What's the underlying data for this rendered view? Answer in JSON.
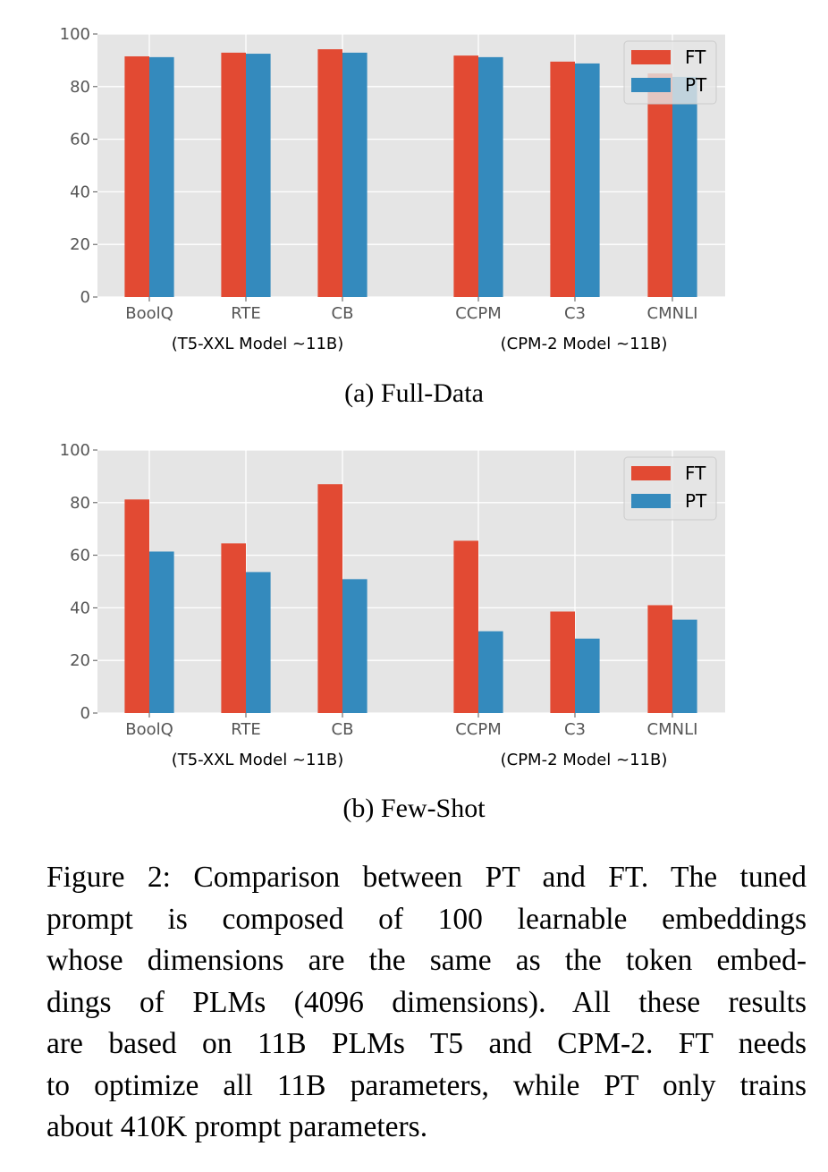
{
  "chart_data": [
    {
      "type": "bar",
      "title": "",
      "subcaption": "(a)  Full-Data",
      "categories": [
        "BoolQ",
        "RTE",
        "CB",
        "CCPM",
        "C3",
        "CMNLI"
      ],
      "groups": [
        {
          "label": "(T5-XXL Model ~11B)",
          "categories": [
            "BoolQ",
            "RTE",
            "CB"
          ]
        },
        {
          "label": "(CPM-2 Model ~11B)",
          "categories": [
            "CCPM",
            "C3",
            "CMNLI"
          ]
        }
      ],
      "series": [
        {
          "name": "FT",
          "color": "#E24A33",
          "values": [
            91.5,
            92.9,
            94.2,
            91.8,
            89.5,
            85.0
          ]
        },
        {
          "name": "PT",
          "color": "#348ABD",
          "values": [
            91.2,
            92.5,
            92.9,
            91.2,
            88.8,
            83.7
          ]
        }
      ],
      "xlabel": "",
      "ylabel": "",
      "ylim": [
        0,
        100
      ],
      "yticks": [
        0,
        20,
        40,
        60,
        80,
        100
      ],
      "grid": true,
      "legend": "top-right"
    },
    {
      "type": "bar",
      "title": "",
      "subcaption": "(b)  Few-Shot",
      "categories": [
        "BoolQ",
        "RTE",
        "CB",
        "CCPM",
        "C3",
        "CMNLI"
      ],
      "groups": [
        {
          "label": "(T5-XXL Model ~11B)",
          "categories": [
            "BoolQ",
            "RTE",
            "CB"
          ]
        },
        {
          "label": "(CPM-2 Model ~11B)",
          "categories": [
            "CCPM",
            "C3",
            "CMNLI"
          ]
        }
      ],
      "series": [
        {
          "name": "FT",
          "color": "#E24A33",
          "values": [
            81.2,
            64.5,
            87.0,
            65.5,
            38.6,
            41.0
          ]
        },
        {
          "name": "PT",
          "color": "#348ABD",
          "values": [
            61.4,
            53.6,
            50.9,
            31.1,
            28.3,
            35.5
          ]
        }
      ],
      "xlabel": "",
      "ylabel": "",
      "ylim": [
        0,
        100
      ],
      "yticks": [
        0,
        20,
        40,
        60,
        80,
        100
      ],
      "grid": true,
      "legend": "top-right"
    }
  ],
  "caption": {
    "lines": [
      "Figure 2: Comparison between PT and FT. The tuned",
      "prompt is composed of 100 learnable embeddings",
      "whose dimensions are the same as the token embed-",
      "dings of PLMs (4096 dimensions).  All these results",
      "are based on 11B PLMs T5 and CPM-2.  FT needs",
      "to optimize all 11B parameters, while PT only trains",
      "about 410K prompt parameters."
    ]
  }
}
